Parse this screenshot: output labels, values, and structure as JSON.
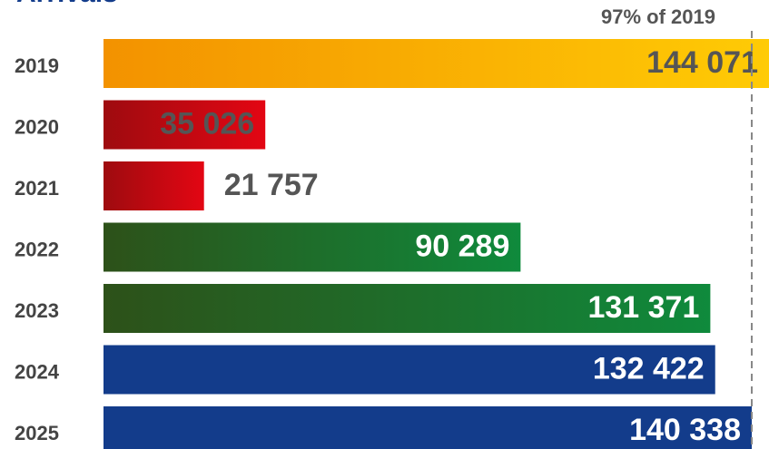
{
  "chart_data": {
    "type": "bar",
    "orientation": "horizontal",
    "title": "Arrivals",
    "categories": [
      "2019",
      "2020",
      "2021",
      "2022",
      "2023",
      "2024",
      "2025"
    ],
    "values": [
      144071,
      35026,
      21757,
      90289,
      131371,
      132422,
      140338
    ],
    "value_labels": [
      "144 071",
      "35 026",
      "21 757",
      "90 289",
      "131 371",
      "132 422",
      "140 338"
    ],
    "colors": [
      [
        "#f39200",
        "#ffcb05"
      ],
      [
        "#9e0b0f",
        "#e30613"
      ],
      [
        "#9e0b0f",
        "#e30613"
      ],
      [
        "#2d5119",
        "#0f8a3c"
      ],
      [
        "#2d5119",
        "#0f8a3c"
      ],
      [
        "#133c8b",
        "#133c8b"
      ],
      [
        "#133c8b",
        "#133c8b"
      ]
    ],
    "label_colors": [
      "#555555",
      "#555555",
      "#555555",
      "#ffffff",
      "#ffffff",
      "#ffffff",
      "#ffffff"
    ],
    "annotation": "97% of 2019"
  }
}
